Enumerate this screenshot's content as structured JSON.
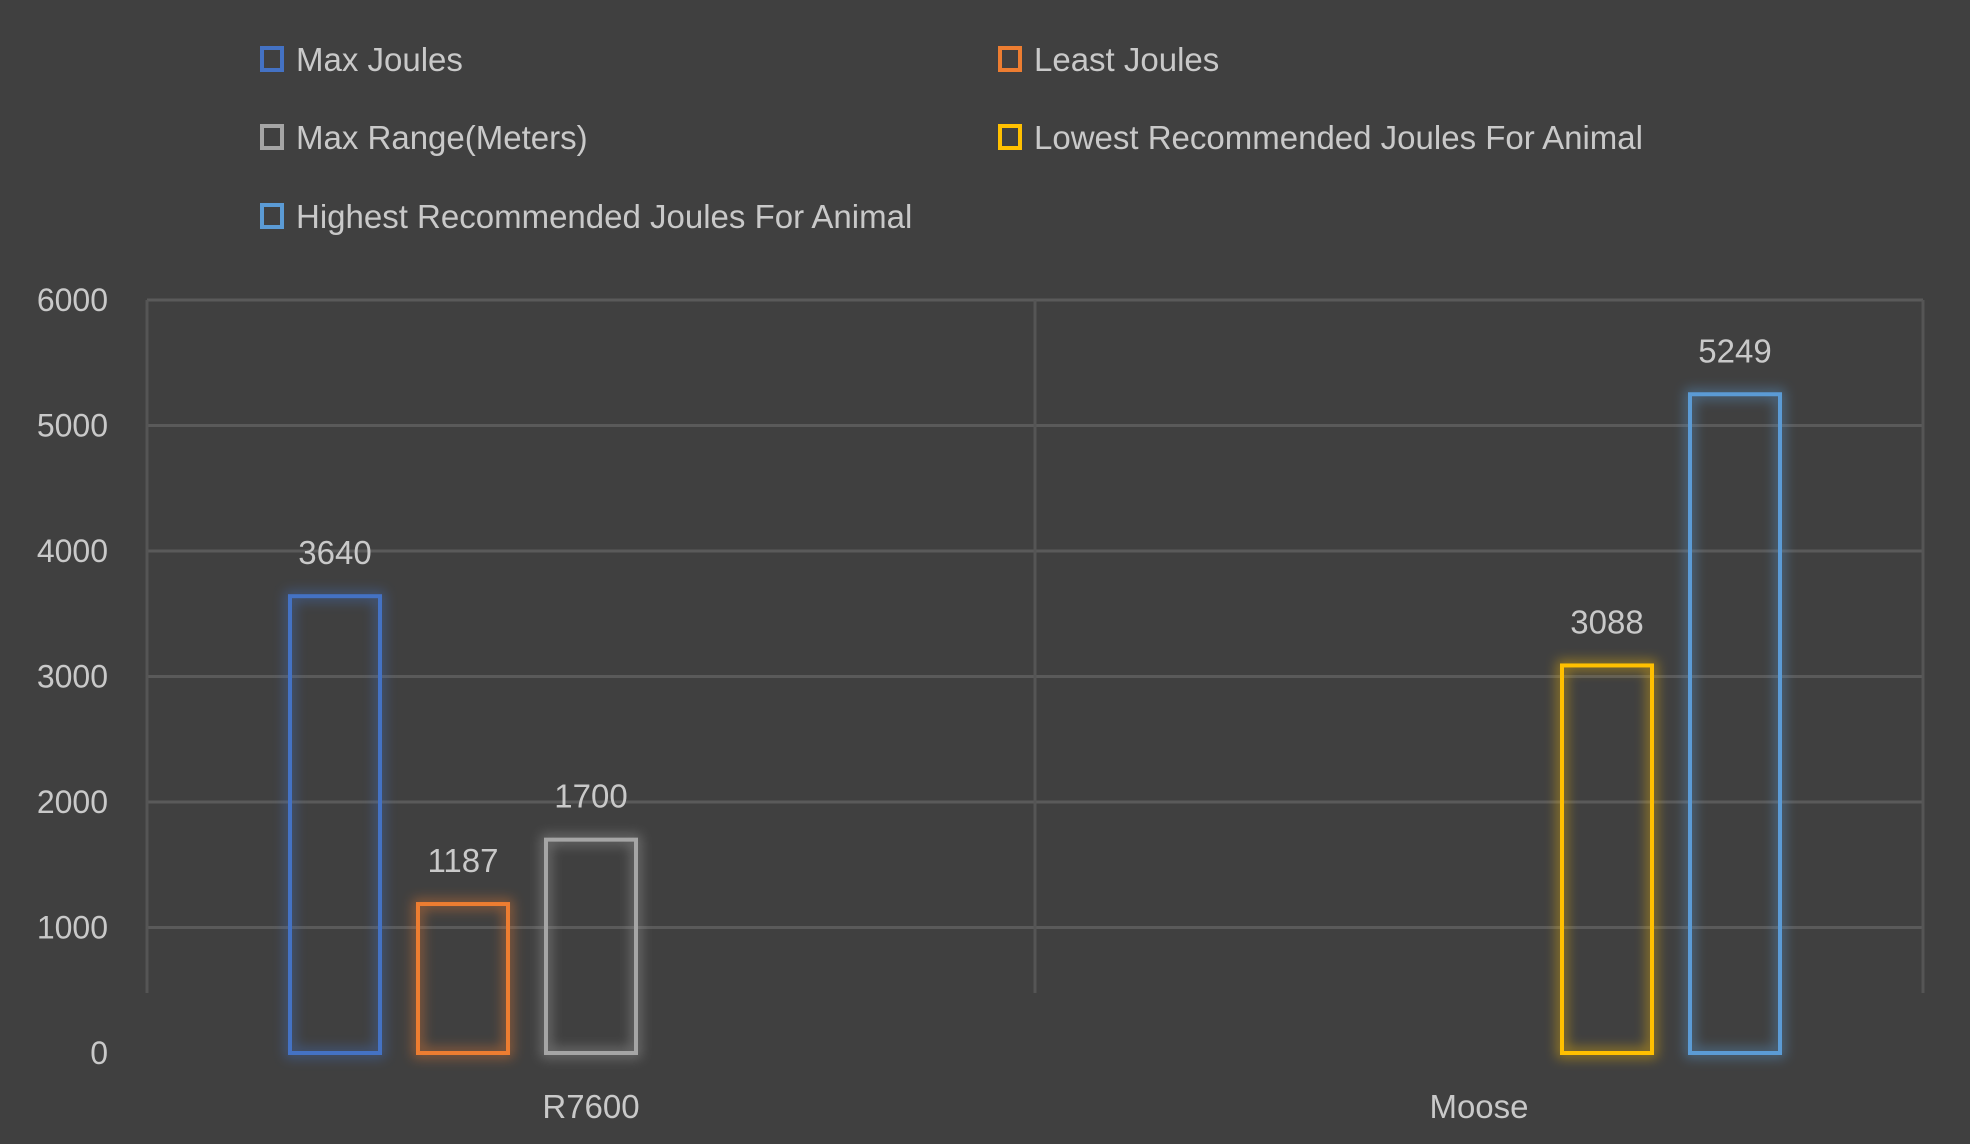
{
  "chart_data": {
    "type": "bar",
    "title": "",
    "xlabel": "",
    "ylabel": "",
    "categories": [
      "R7600",
      "Moose"
    ],
    "series": [
      {
        "name": "Max Joules",
        "color": "#4472C4",
        "values": [
          3640,
          null
        ]
      },
      {
        "name": "Least Joules",
        "color": "#ED7D31",
        "values": [
          1187,
          null
        ]
      },
      {
        "name": "Max Range(Meters)",
        "color": "#A5A5A5",
        "values": [
          1700,
          null
        ]
      },
      {
        "name": "Lowest Recommended Joules For Animal",
        "color": "#FFC000",
        "values": [
          null,
          3088
        ]
      },
      {
        "name": "Highest Recommended Joules For Animal",
        "color": "#5B9BD5",
        "values": [
          null,
          5249
        ]
      }
    ],
    "ylim": [
      0,
      6000
    ],
    "yticks": [
      0,
      1000,
      2000,
      3000,
      4000,
      5000,
      6000
    ],
    "grid": true,
    "legend_position": "top",
    "data_labels": true,
    "bar_style": "outlined with glow"
  }
}
